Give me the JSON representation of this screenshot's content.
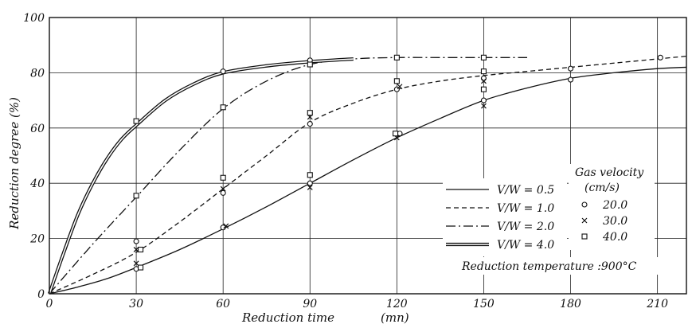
{
  "chart_data": {
    "type": "line",
    "title": "",
    "xlabel": "Reduction  time",
    "xlabel_unit": "(mn)",
    "ylabel": "Reduction degree  (%)",
    "xlim": [
      0,
      220
    ],
    "ylim": [
      0,
      100
    ],
    "xticks": [
      "0",
      "30",
      "60",
      "90",
      "120",
      "150",
      "180",
      "210"
    ],
    "yticks": [
      "0",
      "20",
      "40",
      "60",
      "80",
      "100"
    ],
    "grid": true,
    "series": [
      {
        "name": "V/W = 0.5",
        "style": "solid",
        "x": [
          0,
          10,
          20,
          30,
          45,
          60,
          75,
          90,
          105,
          120,
          135,
          150,
          165,
          180,
          195,
          210,
          220
        ],
        "y": [
          0,
          2.5,
          5.5,
          9.5,
          16,
          23.5,
          31.5,
          40,
          48.5,
          56.5,
          63.5,
          70,
          74.5,
          78,
          80,
          81.5,
          82
        ]
      },
      {
        "name": "V/W = 1.0",
        "style": "dashed",
        "x": [
          0,
          15,
          30,
          45,
          60,
          75,
          90,
          105,
          120,
          135,
          150,
          165,
          180,
          195,
          210,
          220
        ],
        "y": [
          0,
          7,
          15,
          26,
          38,
          50,
          62,
          69,
          74,
          77,
          79,
          80.5,
          82,
          83.5,
          85,
          86
        ]
      },
      {
        "name": "V/W = 2.0",
        "style": "dashdot",
        "x": [
          0,
          15,
          30,
          45,
          60,
          75,
          90,
          105,
          120,
          135,
          150,
          165
        ],
        "y": [
          0,
          18,
          35,
          52,
          67,
          77,
          83,
          85,
          85.5,
          85.5,
          85.5,
          85.5
        ]
      },
      {
        "name": "V/W = 4.0",
        "style": "double",
        "x": [
          0,
          5,
          10,
          15,
          20,
          25,
          30,
          40,
          50,
          60,
          75,
          90,
          105
        ],
        "y": [
          0,
          15,
          29,
          40,
          49,
          56,
          61,
          70,
          76,
          80,
          82.5,
          84,
          85
        ]
      }
    ],
    "points": {
      "o": [
        [
          30,
          19
        ],
        [
          30,
          9
        ],
        [
          60,
          36.5
        ],
        [
          60,
          24
        ],
        [
          60,
          80.5
        ],
        [
          90,
          61.5
        ],
        [
          90,
          40
        ],
        [
          90,
          84.5
        ],
        [
          120,
          74
        ],
        [
          121,
          58
        ],
        [
          150,
          78
        ],
        [
          150,
          70
        ],
        [
          180,
          81.5
        ],
        [
          180,
          77.5
        ],
        [
          211,
          85.5
        ]
      ],
      "x": [
        [
          30,
          16
        ],
        [
          30,
          11
        ],
        [
          60,
          38
        ],
        [
          61,
          24.5
        ],
        [
          90,
          64
        ],
        [
          90,
          38.5
        ],
        [
          121,
          75
        ],
        [
          120,
          56.5
        ],
        [
          150,
          77
        ],
        [
          150,
          68
        ]
      ],
      "square": [
        [
          30,
          62.5
        ],
        [
          30,
          35.5
        ],
        [
          31.5,
          16
        ],
        [
          31.5,
          9.5
        ],
        [
          60,
          67.5
        ],
        [
          60,
          42
        ],
        [
          90,
          65.5
        ],
        [
          90,
          43
        ],
        [
          90,
          83
        ],
        [
          120,
          85.5
        ],
        [
          120,
          77
        ],
        [
          119.5,
          58
        ],
        [
          150,
          85.5
        ],
        [
          150,
          80.5
        ],
        [
          150,
          74
        ]
      ]
    },
    "legend_title": "Gas velocity",
    "legend_title_unit": "(cm/s)",
    "legend_markers": [
      {
        "symbol": "o",
        "label": "20.0"
      },
      {
        "symbol": "x",
        "label": "30.0"
      },
      {
        "symbol": "square",
        "label": "40.0"
      }
    ],
    "annotation": "Reduction temperature :900°C"
  }
}
